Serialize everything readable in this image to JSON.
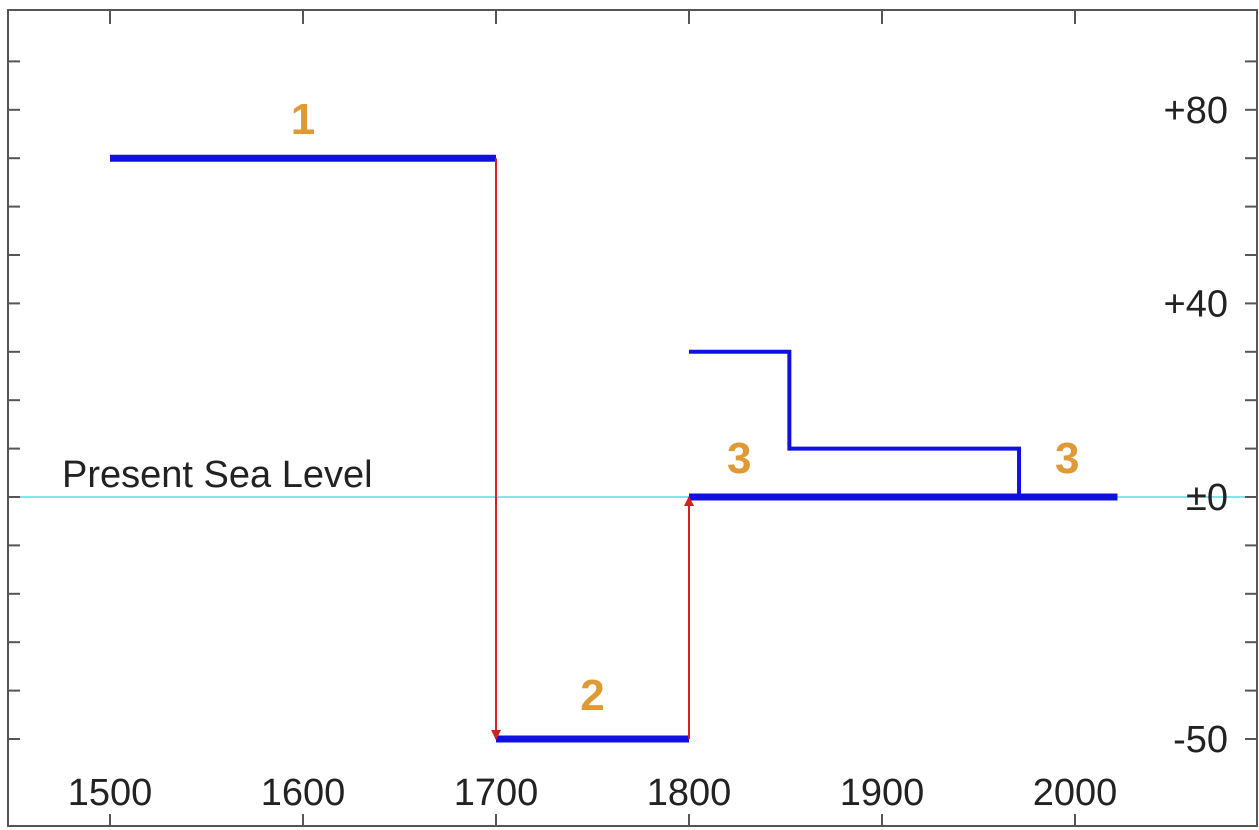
{
  "chart_data": {
    "type": "line",
    "title": "",
    "xlabel": "",
    "ylabel": "",
    "xlim": [
      1480,
      2070
    ],
    "ylim": [
      -60,
      102
    ],
    "x_ticks": [
      {
        "value": 1500,
        "label": "1500"
      },
      {
        "value": 1600,
        "label": "1600"
      },
      {
        "value": 1700,
        "label": "1700"
      },
      {
        "value": 1800,
        "label": "1800"
      },
      {
        "value": 1900,
        "label": "1900"
      },
      {
        "value": 2000,
        "label": "2000"
      }
    ],
    "y_ticks": [
      {
        "value": 80,
        "label": "+80"
      },
      {
        "value": 40,
        "label": "+40"
      },
      {
        "value": 0,
        "label": "±0"
      },
      {
        "value": -50,
        "label": "-50"
      }
    ],
    "y_minor_tick_step": 10,
    "grid": false,
    "reference_line": {
      "y": 0,
      "label": "Present Sea Level",
      "color": "#7fe7ea"
    },
    "series": [
      {
        "id": "phase-1",
        "color": "#1010e0",
        "x": [
          1500,
          1700
        ],
        "y": [
          70,
          70
        ]
      },
      {
        "id": "phase-2",
        "color": "#1010e0",
        "x": [
          1700,
          1800
        ],
        "y": [
          -50,
          -50
        ]
      },
      {
        "id": "phase-3",
        "color": "#1010e0",
        "x": [
          1800,
          2022
        ],
        "y": [
          0,
          0
        ]
      },
      {
        "id": "upper-step",
        "color": "#1010e0",
        "x": [
          1800,
          1852,
          1852,
          1971,
          1971
        ],
        "y": [
          30,
          30,
          10,
          10,
          0
        ]
      }
    ],
    "arrows": [
      {
        "id": "drop",
        "color": "#d42020",
        "from": [
          1700,
          70
        ],
        "to": [
          1700,
          -50
        ]
      },
      {
        "id": "rise",
        "color": "#d42020",
        "from": [
          1800,
          -50
        ],
        "to": [
          1800,
          0
        ]
      }
    ],
    "annotations": [
      {
        "text": "1",
        "x": 1600,
        "y": 75,
        "color": "#e09a35"
      },
      {
        "text": "2",
        "x": 1750,
        "y": -44,
        "color": "#e09a35"
      },
      {
        "text": "3",
        "x": 1826,
        "y": 5,
        "color": "#e09a35"
      },
      {
        "text": "3",
        "x": 1996,
        "y": 5,
        "color": "#e09a35"
      }
    ]
  }
}
